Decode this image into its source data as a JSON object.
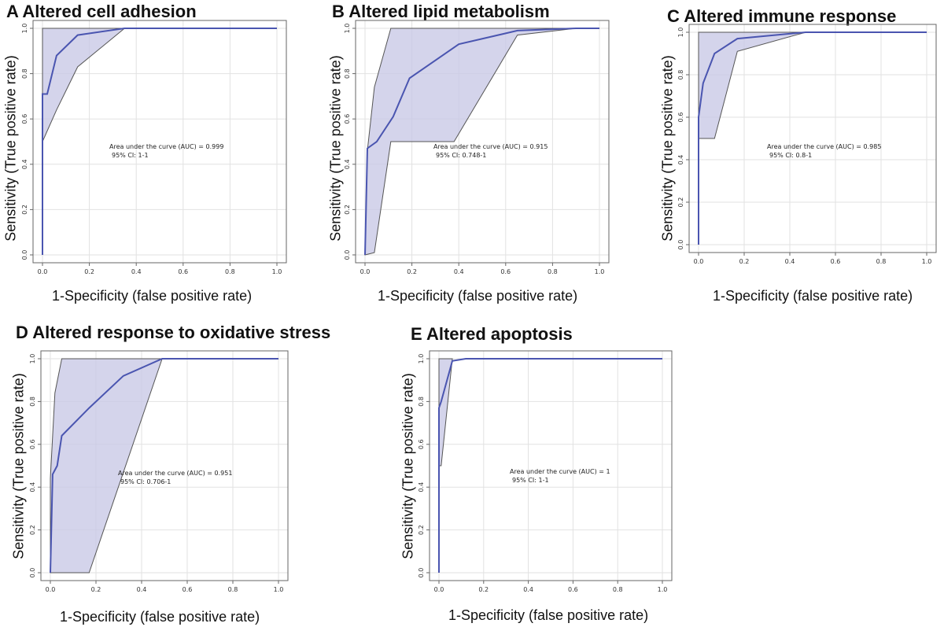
{
  "chart_data": [
    {
      "type": "line",
      "panel_letter": "A",
      "title": "Altered cell adhesion",
      "xlabel": "1-Specificity (false positive rate)",
      "ylabel": "Sensitivity (True positive rate)",
      "xlim": [
        0,
        1
      ],
      "ylim": [
        0,
        1
      ],
      "xticks": [
        "0.0",
        "0.2",
        "0.4",
        "0.6",
        "0.8",
        "1.0"
      ],
      "yticks": [
        "0.0",
        "0.2",
        "0.4",
        "0.6",
        "0.8",
        "1.0"
      ],
      "auc_text": "Area under the curve (AUC) = 0.999",
      "ci_text": "95% CI: 1-1",
      "roc": [
        [
          0,
          0
        ],
        [
          0,
          0.71
        ],
        [
          0.02,
          0.71
        ],
        [
          0.06,
          0.88
        ],
        [
          0.15,
          0.97
        ],
        [
          0.35,
          1.0
        ],
        [
          1.0,
          1.0
        ]
      ],
      "ci_band": [
        [
          0,
          0.5
        ],
        [
          0,
          1.0
        ],
        [
          0.35,
          1.0
        ],
        [
          0.15,
          0.83
        ],
        [
          0.06,
          0.64
        ],
        [
          0,
          0.5
        ]
      ],
      "colors": {
        "line": "#4a55b0",
        "band": "#c9c9e6",
        "band_edge": "#555555"
      }
    },
    {
      "type": "line",
      "panel_letter": "B",
      "title": "Altered lipid metabolism",
      "xlabel": "1-Specificity (false positive rate)",
      "ylabel": "Sensitivity (True positive rate)",
      "xlim": [
        0,
        1
      ],
      "ylim": [
        0,
        1
      ],
      "xticks": [
        "0.0",
        "0.2",
        "0.4",
        "0.6",
        "0.8",
        "1.0"
      ],
      "yticks": [
        "0.0",
        "0.2",
        "0.4",
        "0.6",
        "0.8",
        "1.0"
      ],
      "auc_text": "Area under the curve (AUC) = 0.915",
      "ci_text": "95% CI: 0.748-1",
      "roc": [
        [
          0,
          0
        ],
        [
          0.01,
          0.47
        ],
        [
          0.05,
          0.5
        ],
        [
          0.12,
          0.61
        ],
        [
          0.19,
          0.78
        ],
        [
          0.4,
          0.93
        ],
        [
          0.65,
          0.99
        ],
        [
          0.9,
          1.0
        ],
        [
          1.0,
          1.0
        ]
      ],
      "ci_band": [
        [
          0,
          0
        ],
        [
          0.04,
          0.01
        ],
        [
          0.11,
          0.5
        ],
        [
          0.38,
          0.5
        ],
        [
          0.65,
          0.97
        ],
        [
          0.9,
          1.0
        ],
        [
          0.11,
          1.0
        ],
        [
          0.04,
          0.74
        ],
        [
          0.01,
          0.46
        ],
        [
          0,
          0
        ]
      ],
      "colors": {
        "line": "#4a55b0",
        "band": "#c9c9e6",
        "band_edge": "#555555"
      }
    },
    {
      "type": "line",
      "panel_letter": "C",
      "title": "Altered immune response",
      "xlabel": "1-Specificity (false positive rate)",
      "ylabel": "Sensitivity (True positive rate)",
      "xlim": [
        0,
        1
      ],
      "ylim": [
        0,
        1
      ],
      "xticks": [
        "0.0",
        "0.2",
        "0.4",
        "0.6",
        "0.8",
        "1.0"
      ],
      "yticks": [
        "0.0",
        "0.2",
        "0.4",
        "0.6",
        "0.8",
        "1.0"
      ],
      "auc_text": "Area under the curve (AUC) = 0.985",
      "ci_text": "95% CI: 0.8-1",
      "roc": [
        [
          0,
          0
        ],
        [
          0,
          0.6
        ],
        [
          0.02,
          0.76
        ],
        [
          0.07,
          0.9
        ],
        [
          0.17,
          0.97
        ],
        [
          0.47,
          1.0
        ],
        [
          1.0,
          1.0
        ]
      ],
      "ci_band": [
        [
          0,
          0.5
        ],
        [
          0,
          1.0
        ],
        [
          0.47,
          1.0
        ],
        [
          0.17,
          0.91
        ],
        [
          0.07,
          0.5
        ],
        [
          0,
          0.5
        ]
      ],
      "colors": {
        "line": "#4a55b0",
        "band": "#c9c9e6",
        "band_edge": "#555555"
      }
    },
    {
      "type": "line",
      "panel_letter": "D",
      "title": "Altered response to oxidative stress",
      "xlabel": "1-Specificity (false positive rate)",
      "ylabel": "Sensitivity (True positive rate)",
      "xlim": [
        0,
        1
      ],
      "ylim": [
        0,
        1
      ],
      "xticks": [
        "0.0",
        "0.2",
        "0.4",
        "0.6",
        "0.8",
        "1.0"
      ],
      "yticks": [
        "0.0",
        "0.2",
        "0.4",
        "0.6",
        "0.8",
        "1.0"
      ],
      "auc_text": "Area under the curve (AUC) = 0.951",
      "ci_text": "95% CI: 0.706-1",
      "roc": [
        [
          0,
          0
        ],
        [
          0.01,
          0.46
        ],
        [
          0.03,
          0.5
        ],
        [
          0.05,
          0.64
        ],
        [
          0.17,
          0.77
        ],
        [
          0.32,
          0.92
        ],
        [
          0.49,
          1.0
        ],
        [
          1.0,
          1.0
        ]
      ],
      "ci_band": [
        [
          0,
          0
        ],
        [
          0.17,
          0
        ],
        [
          0.49,
          1.0
        ],
        [
          0.05,
          1.0
        ],
        [
          0.02,
          0.84
        ],
        [
          0,
          0.44
        ],
        [
          0,
          0
        ]
      ],
      "colors": {
        "line": "#4a55b0",
        "band": "#c9c9e6",
        "band_edge": "#555555"
      }
    },
    {
      "type": "line",
      "panel_letter": "E",
      "title": "Altered apoptosis",
      "xlabel": "1-Specificity (false positive rate)",
      "ylabel": "Sensitivity (True positive rate)",
      "xlim": [
        0,
        1
      ],
      "ylim": [
        0,
        1
      ],
      "xticks": [
        "0.0",
        "0.2",
        "0.4",
        "0.6",
        "0.8",
        "1.0"
      ],
      "yticks": [
        "0.0",
        "0.2",
        "0.4",
        "0.6",
        "0.8",
        "1.0"
      ],
      "auc_text": "Area under the curve (AUC) = 1",
      "ci_text": "95% CI: 1-1",
      "roc": [
        [
          0,
          0
        ],
        [
          0,
          0.77
        ],
        [
          0.01,
          0.8
        ],
        [
          0.06,
          0.99
        ],
        [
          0.12,
          1.0
        ],
        [
          1.0,
          1.0
        ]
      ],
      "ci_band": [
        [
          0,
          0.5
        ],
        [
          0,
          1.0
        ],
        [
          0.06,
          1.0
        ],
        [
          0.01,
          0.5
        ],
        [
          0,
          0.5
        ]
      ],
      "colors": {
        "line": "#4a55b0",
        "band": "#c9c9e6",
        "band_edge": "#555555"
      }
    }
  ]
}
